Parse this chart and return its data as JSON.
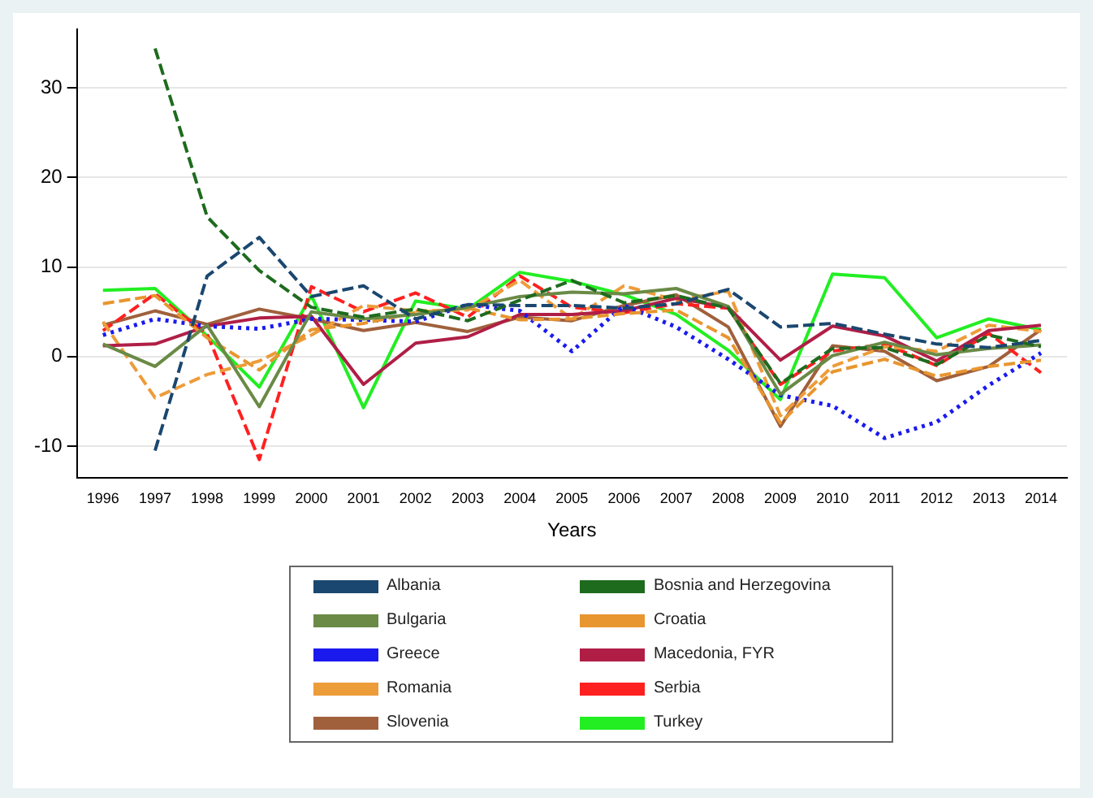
{
  "chart_data": {
    "type": "line",
    "xlabel": "Years",
    "categories": [
      "1996",
      "1997",
      "1998",
      "1999",
      "2000",
      "2001",
      "2002",
      "2003",
      "2004",
      "2005",
      "2006",
      "2007",
      "2008",
      "2009",
      "2010",
      "2011",
      "2012",
      "2013",
      "2014"
    ],
    "ylim": [
      -13.5,
      36.5
    ],
    "yticks": [
      -10,
      0,
      10,
      20,
      30
    ],
    "grid": "y",
    "legend": "bottom",
    "marker": "none",
    "series": [
      {
        "name": "Albania",
        "color": "#1a476f",
        "line_style": "dashed",
        "values": [
          null,
          -10.5,
          9,
          13.3,
          6.7,
          7.9,
          4.2,
          5.8,
          5.7,
          5.7,
          5.4,
          5.9,
          7.5,
          3.3,
          3.7,
          2.5,
          1.4,
          1.0,
          1.8
        ]
      },
      {
        "name": "Bosnia and Herzegovina",
        "color": "#1e6b1e",
        "line_style": "dashed",
        "values": [
          null,
          34.4,
          15.6,
          9.6,
          5.5,
          4.4,
          5.3,
          4.0,
          6.3,
          8.5,
          6.0,
          6.8,
          5.4,
          -3.0,
          0.9,
          1.0,
          -0.9,
          2.4,
          1.1
        ]
      },
      {
        "name": "Bulgaria",
        "color": "#6a8a46",
        "line_style": "solid",
        "values": [
          1.4,
          -1.1,
          3.5,
          -5.6,
          5.0,
          4.2,
          4.7,
          5.5,
          6.7,
          7.2,
          7.0,
          7.6,
          5.6,
          -4.2,
          0.1,
          1.6,
          0.2,
          0.9,
          1.3
        ]
      },
      {
        "name": "Croatia",
        "color": "#e8962f",
        "line_style": "dashed",
        "values": [
          5.9,
          6.8,
          2.1,
          -1.5,
          3.0,
          3.7,
          4.9,
          5.4,
          4.1,
          4.2,
          4.8,
          5.2,
          2.1,
          -7.4,
          -1.7,
          -0.3,
          -2.2,
          -1.1,
          -0.4
        ]
      },
      {
        "name": "Greece",
        "color": "#1a1aee",
        "line_style": "dotted",
        "values": [
          2.4,
          4.2,
          3.4,
          3.1,
          4.2,
          4.1,
          3.9,
          5.8,
          5.1,
          0.6,
          5.7,
          3.3,
          -0.3,
          -4.3,
          -5.5,
          -9.1,
          -7.3,
          -3.2,
          0.4
        ]
      },
      {
        "name": "Macedonia, FYR",
        "color": "#b01e46",
        "line_style": "solid",
        "values": [
          1.2,
          1.4,
          3.4,
          4.3,
          4.5,
          -3.1,
          1.5,
          2.2,
          4.7,
          4.7,
          5.1,
          6.5,
          5.5,
          -0.4,
          3.4,
          2.3,
          -0.5,
          2.9,
          3.5
        ]
      },
      {
        "name": "Romania",
        "color": "#ed9c3a",
        "line_style": "dashed",
        "values": [
          3.9,
          -4.6,
          -2.0,
          -0.5,
          2.4,
          5.7,
          5.1,
          5.2,
          8.5,
          4.2,
          7.9,
          6.3,
          7.3,
          -6.6,
          -1.1,
          1.1,
          0.6,
          3.5,
          2.8
        ]
      },
      {
        "name": "Serbia",
        "color": "#ff2020",
        "line_style": "dashed",
        "values": [
          2.9,
          7.0,
          2.5,
          -11.5,
          7.8,
          5.0,
          7.1,
          4.4,
          9.0,
          5.5,
          4.9,
          5.9,
          5.4,
          -3.1,
          0.6,
          1.4,
          -1.0,
          2.6,
          -1.8
        ]
      },
      {
        "name": "Slovenia",
        "color": "#a0603c",
        "line_style": "solid",
        "values": [
          3.5,
          5.1,
          3.6,
          5.3,
          4.2,
          2.9,
          3.8,
          2.8,
          4.4,
          4.0,
          5.7,
          6.9,
          3.3,
          -7.8,
          1.2,
          0.6,
          -2.7,
          -1.1,
          3.0
        ]
      },
      {
        "name": "Turkey",
        "color": "#22ee22",
        "line_style": "solid",
        "values": [
          7.4,
          7.6,
          2.3,
          -3.4,
          6.8,
          -5.7,
          6.2,
          5.3,
          9.4,
          8.4,
          6.9,
          4.7,
          0.7,
          -4.8,
          9.2,
          8.8,
          2.1,
          4.2,
          3.0
        ]
      }
    ]
  }
}
